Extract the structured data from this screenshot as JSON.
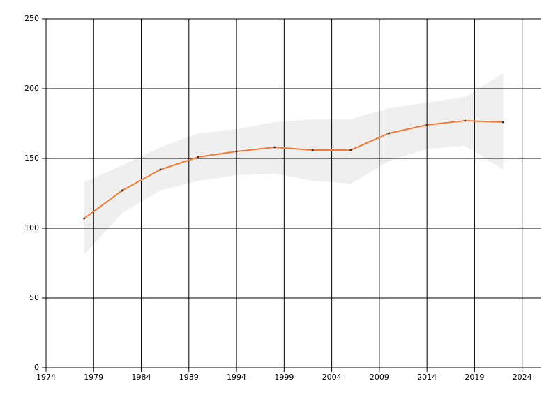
{
  "chart_data": {
    "type": "line",
    "x": [
      1978,
      1982,
      1986,
      1990,
      1994,
      1998,
      2002,
      2006,
      2010,
      2014,
      2018,
      2022
    ],
    "series": [
      {
        "color": "#f47a3a",
        "values": [
          107,
          127,
          142,
          151,
          155,
          158,
          156,
          156,
          168,
          174,
          177,
          176
        ]
      }
    ],
    "band": {
      "color": "#efefef",
      "upper": [
        133,
        145,
        158,
        168,
        171,
        176,
        178,
        178,
        186,
        190,
        194,
        211
      ],
      "lower": [
        81,
        111,
        127,
        134,
        138,
        139,
        134,
        132,
        148,
        157,
        159,
        142
      ]
    },
    "marker_color": "#333333",
    "xlim": [
      1974,
      2026
    ],
    "xticks": [
      1974,
      1979,
      1984,
      1989,
      1994,
      1999,
      2004,
      2009,
      2014,
      2019,
      2024
    ],
    "ylim": [
      0,
      250
    ],
    "yticks": [
      0,
      50,
      100,
      150,
      200,
      250
    ],
    "grid": true
  }
}
